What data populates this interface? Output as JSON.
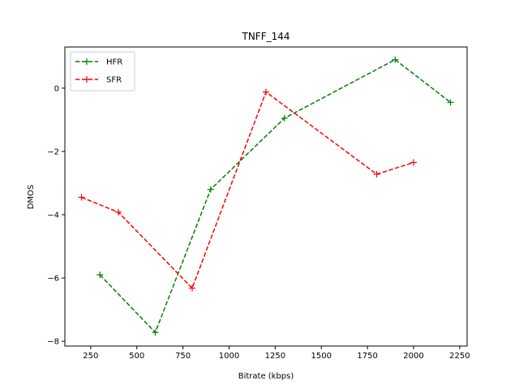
{
  "chart_data": {
    "type": "line",
    "title": "TNFF_144",
    "xlabel": "Bitrate (kbps)",
    "ylabel": "DMOS",
    "xlim": [
      110,
      2290
    ],
    "ylim": [
      -8.15,
      1.3
    ],
    "xticks": [
      250,
      500,
      750,
      1000,
      1250,
      1500,
      1750,
      2000,
      2250
    ],
    "yticks": [
      -8,
      -6,
      -4,
      -2,
      0
    ],
    "grid": false,
    "legend_position": "top-left",
    "series": [
      {
        "name": "HFR",
        "color": "#008000",
        "line_style": "dashed",
        "marker": "plus",
        "x": [
          300,
          600,
          900,
          1300,
          1900,
          2200
        ],
        "y": [
          -5.9,
          -7.72,
          -3.2,
          -0.95,
          0.9,
          -0.45
        ]
      },
      {
        "name": "SFR",
        "color": "#ff0000",
        "line_style": "dashed",
        "marker": "plus",
        "x": [
          200,
          400,
          800,
          1200,
          1800,
          2000
        ],
        "y": [
          -3.45,
          -3.92,
          -6.32,
          -0.12,
          -2.72,
          -2.35
        ]
      }
    ]
  }
}
